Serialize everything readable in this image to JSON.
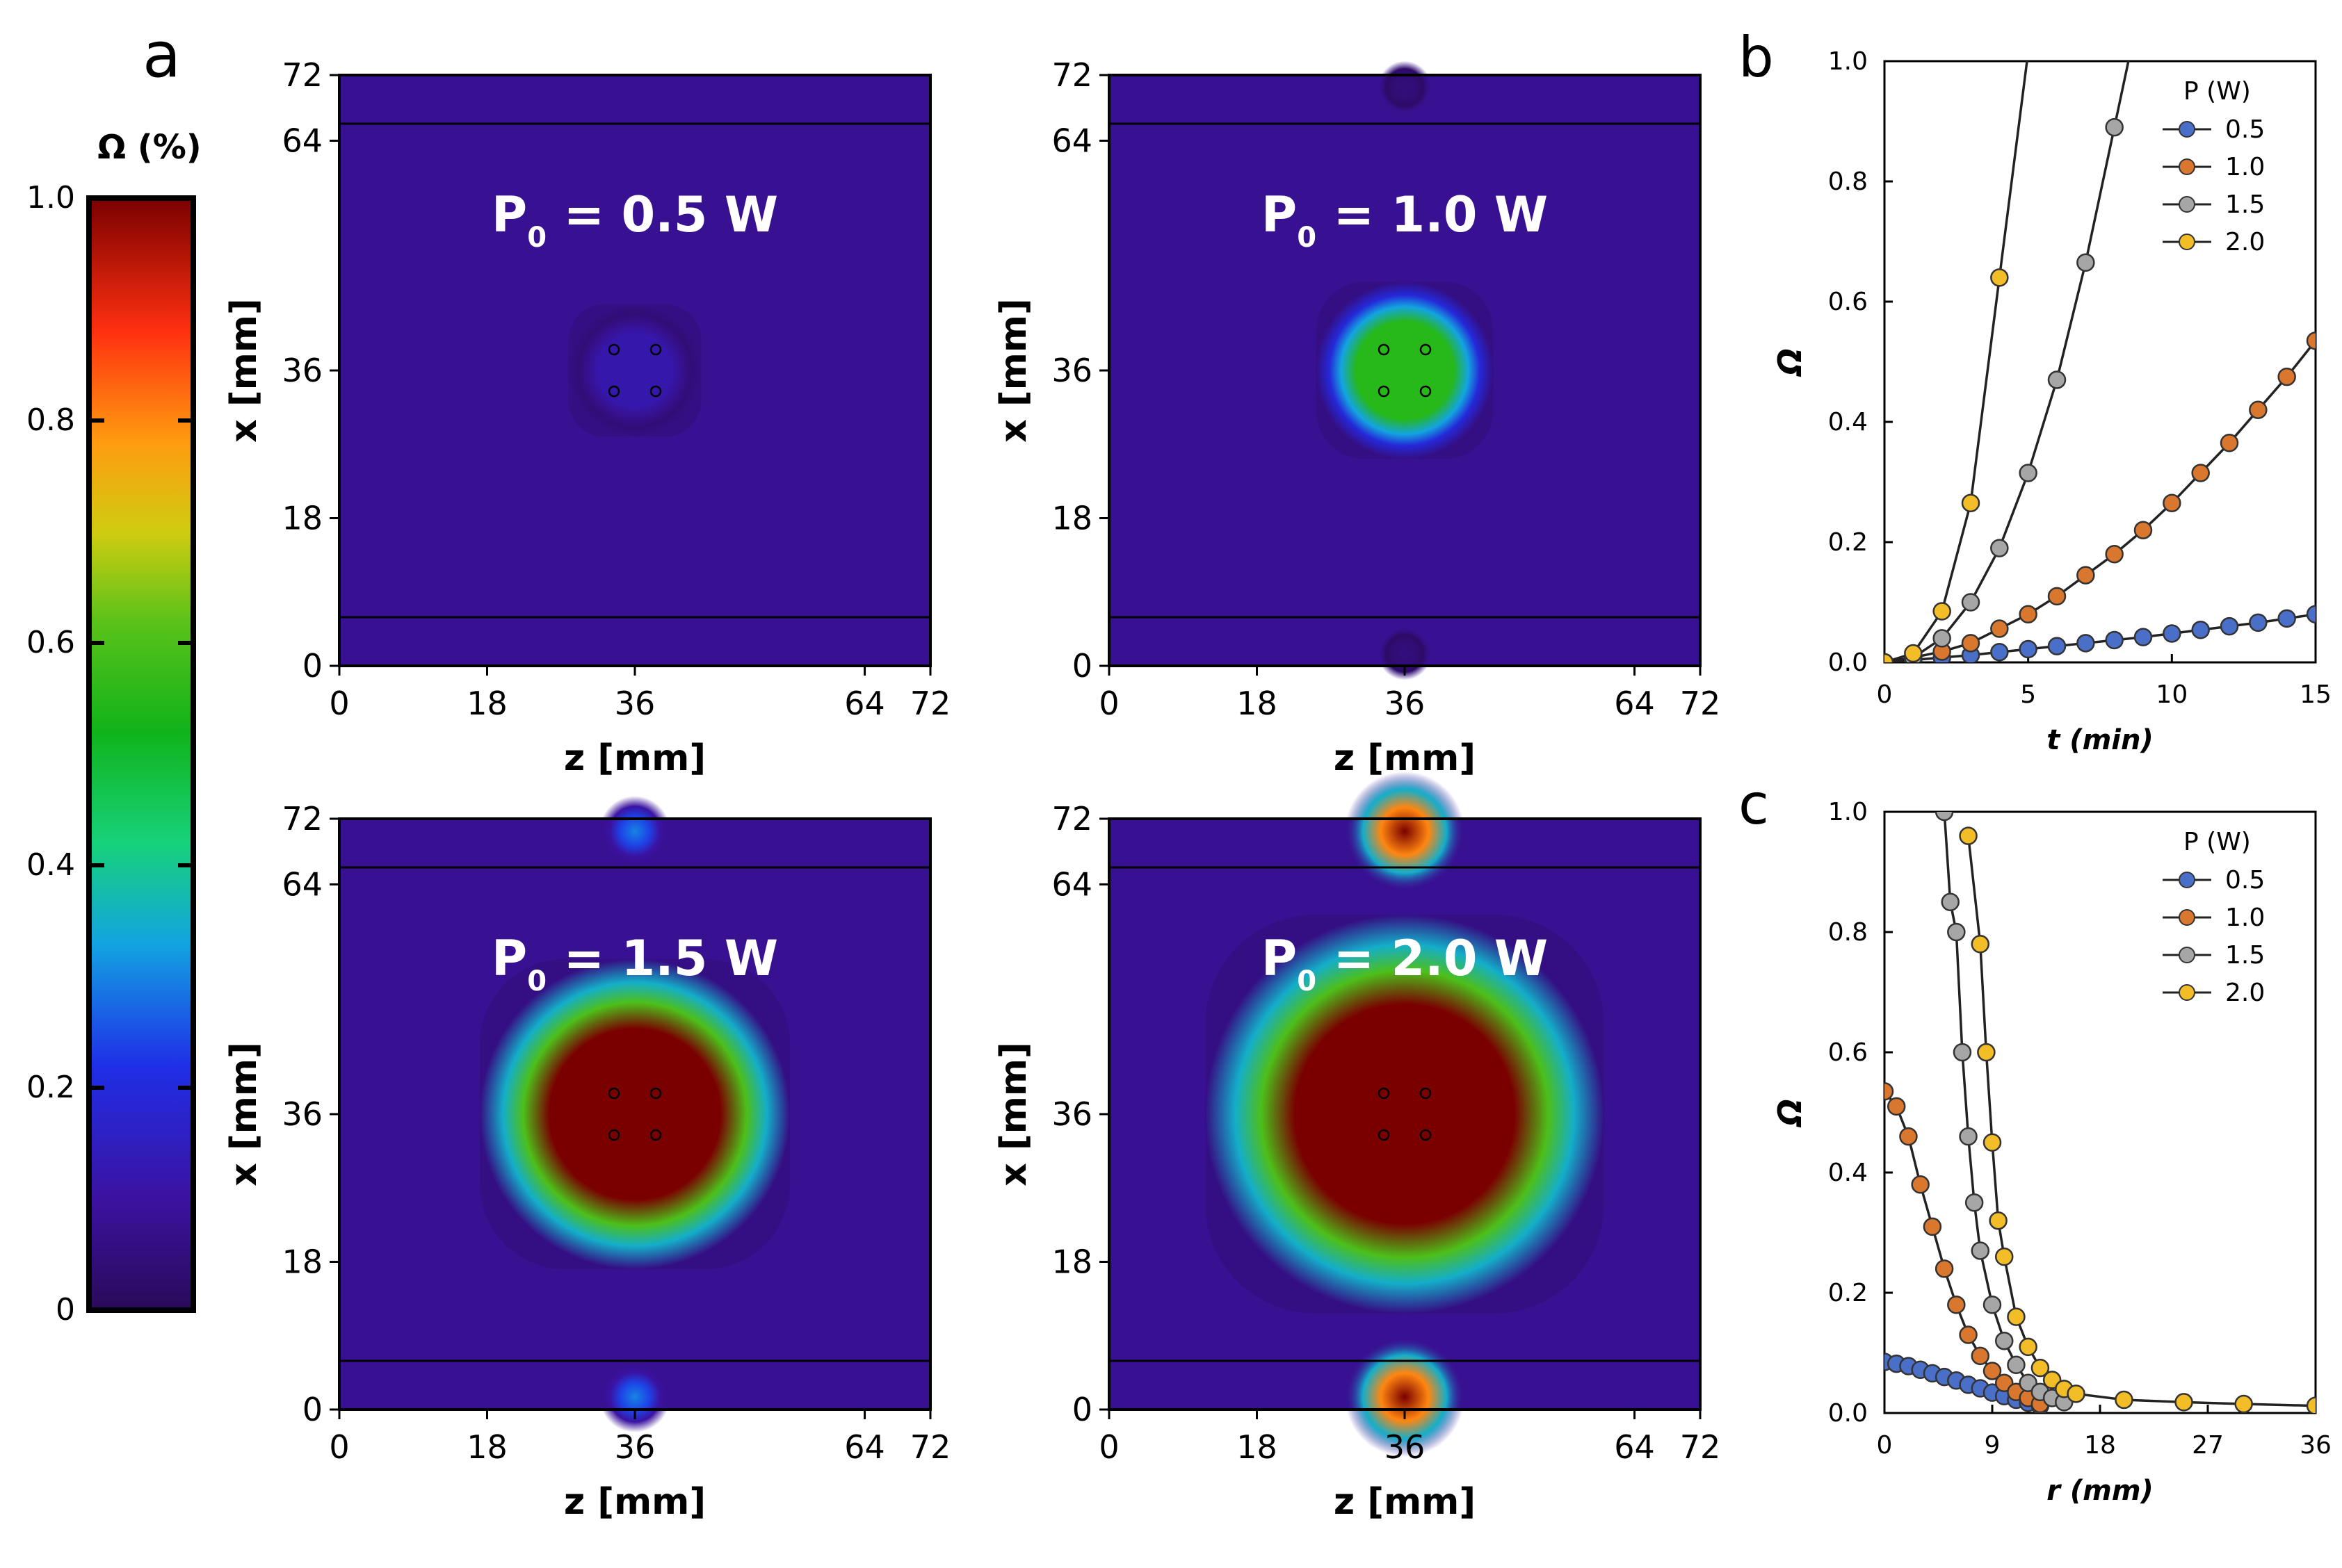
{
  "panel_labels": {
    "a": "a",
    "b": "b",
    "c": "c"
  },
  "colorbar": {
    "title": "Ω (%)",
    "ticks": [
      "0",
      "0.2",
      "0.4",
      "0.6",
      "0.8",
      "1.0"
    ],
    "tick_values": [
      0,
      0.2,
      0.4,
      0.6,
      0.8,
      1.0
    ]
  },
  "maps": {
    "x_ticks": [
      "0",
      "18",
      "36",
      "64",
      "72"
    ],
    "y_ticks": [
      "0",
      "18",
      "36",
      "64",
      "72"
    ],
    "xlabel": "z [mm]",
    "ylabel": "x [mm]",
    "panels": [
      {
        "title_main": "P",
        "title_sub": "0",
        "title_rest": " = 0.5 W",
        "center_level": 0.12,
        "center_extent_mm": 6,
        "edge_level": 0.0
      },
      {
        "title_main": "P",
        "title_sub": "0",
        "title_rest": " = 1.0 W",
        "center_level": 0.55,
        "center_extent_mm": 8,
        "edge_level": 0.05
      },
      {
        "title_main": "P",
        "title_sub": "0",
        "title_rest": " = 1.5 W",
        "center_level": 1.0,
        "center_extent_mm": 14,
        "edge_level": 0.3
      },
      {
        "title_main": "P",
        "title_sub": "0",
        "title_rest": " = 2.0 W",
        "center_level": 1.0,
        "center_extent_mm": 18,
        "edge_level": 1.0
      }
    ]
  },
  "chart_data": [
    {
      "type": "line",
      "title": "",
      "xlabel": "t (min)",
      "ylabel": "Ω",
      "xlim": [
        0,
        15
      ],
      "ylim": [
        0,
        1.0
      ],
      "x_ticks": [
        "0",
        "5",
        "10",
        "15"
      ],
      "y_ticks": [
        "0.0",
        "0.2",
        "0.4",
        "0.6",
        "0.8",
        "1.0"
      ],
      "legend_title": "P (W)",
      "legend_position": "top-right",
      "series": [
        {
          "name": "0.5",
          "color": "#4a6fc9",
          "x": [
            0,
            1,
            2,
            3,
            4,
            5,
            6,
            7,
            8,
            9,
            10,
            11,
            12,
            13,
            14,
            15
          ],
          "y": [
            0.0,
            0.004,
            0.008,
            0.012,
            0.017,
            0.022,
            0.027,
            0.032,
            0.037,
            0.042,
            0.048,
            0.054,
            0.06,
            0.066,
            0.073,
            0.08
          ]
        },
        {
          "name": "1.0",
          "color": "#d9772e",
          "x": [
            0,
            1,
            2,
            3,
            4,
            5,
            6,
            7,
            8,
            9,
            10,
            11,
            12,
            13,
            14,
            15
          ],
          "y": [
            0.0,
            0.008,
            0.018,
            0.032,
            0.056,
            0.08,
            0.11,
            0.145,
            0.18,
            0.22,
            0.265,
            0.315,
            0.365,
            0.42,
            0.475,
            0.535
          ]
        },
        {
          "name": "1.5",
          "color": "#a6a6a6",
          "x": [
            0,
            1,
            2,
            3,
            4,
            5,
            6,
            7,
            8
          ],
          "y": [
            0.0,
            0.008,
            0.04,
            0.1,
            0.19,
            0.315,
            0.47,
            0.665,
            0.89
          ]
        },
        {
          "name": "2.0",
          "color": "#f2bd27",
          "x": [
            0,
            1,
            2,
            3,
            4
          ],
          "y": [
            0.0,
            0.015,
            0.085,
            0.265,
            0.64
          ]
        }
      ]
    },
    {
      "type": "scatter",
      "title": "",
      "xlabel": "r (mm)",
      "ylabel": "Ω",
      "xlim": [
        0,
        36
      ],
      "ylim": [
        0,
        1.0
      ],
      "x_ticks": [
        "0",
        "9",
        "18",
        "27",
        "36"
      ],
      "y_ticks": [
        "0.0",
        "0.2",
        "0.4",
        "0.6",
        "0.8",
        "1.0"
      ],
      "legend_title": "P (W)",
      "legend_position": "top-right",
      "series": [
        {
          "name": "0.5",
          "color": "#4a6fc9",
          "x": [
            0,
            1,
            2,
            3,
            4,
            5,
            6,
            7,
            8,
            9,
            10,
            11,
            12,
            13
          ],
          "y": [
            0.085,
            0.082,
            0.078,
            0.072,
            0.066,
            0.06,
            0.054,
            0.047,
            0.041,
            0.034,
            0.028,
            0.022,
            0.017,
            0.012
          ]
        },
        {
          "name": "1.0",
          "color": "#d9772e",
          "x": [
            0,
            1,
            2,
            3,
            4,
            5,
            6,
            7,
            8,
            9,
            10,
            11,
            12,
            13
          ],
          "y": [
            0.535,
            0.51,
            0.46,
            0.38,
            0.31,
            0.24,
            0.18,
            0.13,
            0.095,
            0.07,
            0.05,
            0.035,
            0.025,
            0.015
          ]
        },
        {
          "name": "1.5",
          "color": "#a6a6a6",
          "x": [
            5,
            5.5,
            6,
            6.5,
            7,
            7.5,
            8,
            9,
            10,
            11,
            12,
            13,
            14,
            15
          ],
          "y": [
            1.0,
            0.85,
            0.8,
            0.6,
            0.46,
            0.35,
            0.27,
            0.18,
            0.12,
            0.08,
            0.05,
            0.035,
            0.025,
            0.018
          ]
        },
        {
          "name": "2.0",
          "color": "#f2bd27",
          "x": [
            7,
            8,
            8.5,
            9,
            9.5,
            10,
            11,
            12,
            13,
            14,
            15,
            16,
            20,
            25,
            30,
            36
          ],
          "y": [
            0.96,
            0.78,
            0.6,
            0.45,
            0.32,
            0.26,
            0.16,
            0.11,
            0.075,
            0.055,
            0.04,
            0.032,
            0.022,
            0.018,
            0.015,
            0.012
          ]
        }
      ]
    }
  ]
}
